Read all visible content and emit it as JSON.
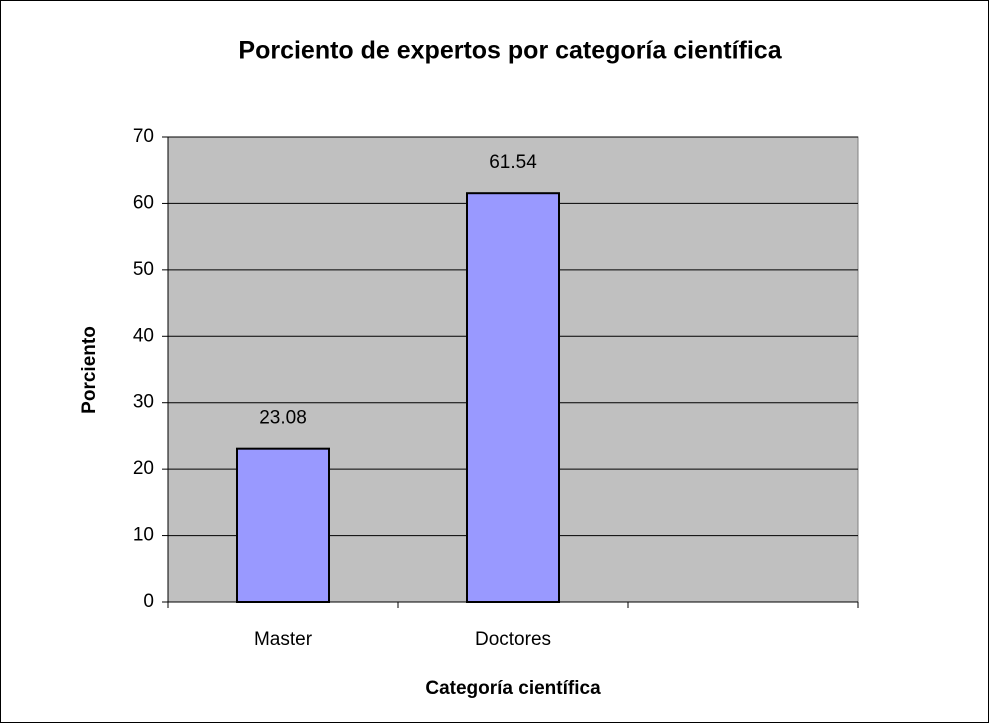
{
  "chart_data": {
    "type": "bar",
    "title": "Porciento de expertos por categoría científica",
    "x_label": "Categoría científica",
    "y_label": "Porciento",
    "categories": [
      "Master",
      "Doctores",
      null
    ],
    "values": [
      23.08,
      61.54,
      null
    ],
    "color": "#9999ff",
    "plot_background": "#c0c0c0",
    "ylim": [
      0,
      70
    ],
    "yticks": [
      0,
      10,
      20,
      30,
      40,
      50,
      60,
      70
    ],
    "grid": true,
    "data_labels": true
  }
}
